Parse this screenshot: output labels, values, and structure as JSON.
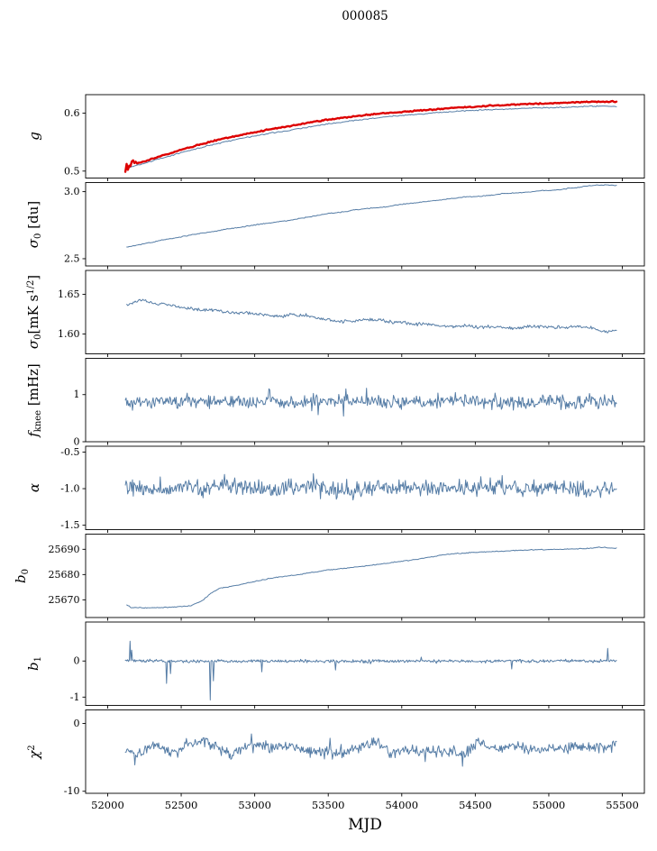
{
  "title": "000085",
  "xlabel": "MJD",
  "colors": {
    "line_blue": "#567da6",
    "line_red": "#dd0000",
    "axis": "#000000"
  },
  "chart_data": {
    "type": "line",
    "layout": "stacked-panels-shared-x",
    "grid": false,
    "legend": "none",
    "x_axis": {
      "label": "MJD",
      "xlim": [
        51850,
        55650
      ],
      "ticks": [
        {
          "v": 52000,
          "label": "52000"
        },
        {
          "v": 52500,
          "label": "52500"
        },
        {
          "v": 53000,
          "label": "53000"
        },
        {
          "v": 53500,
          "label": "53500"
        },
        {
          "v": 54000,
          "label": "54000"
        },
        {
          "v": 54500,
          "label": "54500"
        },
        {
          "v": 55000,
          "label": "55000"
        },
        {
          "v": 55500,
          "label": "55500"
        }
      ]
    },
    "panels": [
      {
        "name": "g",
        "ylabel": [
          {
            "t": "g",
            "italic": true
          }
        ],
        "ylim": [
          0.488,
          0.632
        ],
        "yticks": [
          {
            "v": 0.5,
            "label": "0.5"
          },
          {
            "v": 0.6,
            "label": "0.6"
          }
        ],
        "series": [
          {
            "name": "gain-lower",
            "color": "#567da6",
            "width": 1.0,
            "seed": 3,
            "n": 380,
            "x_range": [
              52120,
              55460
            ],
            "noise": 0.0012,
            "trend": {
              "x": [
                52120,
                52300,
                52500,
                52700,
                52900,
                53100,
                53300,
                53500,
                53700,
                53900,
                54100,
                54300,
                54500,
                54700,
                54900,
                55100,
                55300,
                55460
              ],
              "y": [
                0.504,
                0.517,
                0.532,
                0.545,
                0.556,
                0.565,
                0.573,
                0.582,
                0.588,
                0.594,
                0.598,
                0.602,
                0.605,
                0.607,
                0.609,
                0.61,
                0.612,
                0.612
              ]
            }
          },
          {
            "name": "gain-upper",
            "color": "#dd0000",
            "width": 2.4,
            "seed": 17,
            "n": 380,
            "x_range": [
              52120,
              55460
            ],
            "noise": 0.0013,
            "burst": {
              "x0": 52120,
              "x1": 52195,
              "amp": 0.009
            },
            "trend": {
              "x": [
                52120,
                52200,
                52300,
                52400,
                52500,
                52600,
                52700,
                52800,
                52900,
                53000,
                53100,
                53200,
                53300,
                53400,
                53500,
                53600,
                53700,
                53800,
                53900,
                54000,
                54100,
                54200,
                54300,
                54400,
                54500,
                54600,
                54700,
                54800,
                54900,
                55000,
                55100,
                55200,
                55300,
                55460
              ],
              "y": [
                0.506,
                0.513,
                0.521,
                0.529,
                0.537,
                0.544,
                0.551,
                0.557,
                0.562,
                0.567,
                0.572,
                0.576,
                0.58,
                0.585,
                0.589,
                0.592,
                0.595,
                0.598,
                0.6,
                0.602,
                0.604,
                0.606,
                0.608,
                0.61,
                0.611,
                0.613,
                0.614,
                0.615,
                0.616,
                0.617,
                0.618,
                0.619,
                0.62,
                0.62
              ]
            }
          }
        ]
      },
      {
        "name": "sigma0-du",
        "ylabel": [
          {
            "t": "σ",
            "italic": true
          },
          {
            "t": "0",
            "sub": true
          },
          {
            "t": " [du]"
          }
        ],
        "ylim": [
          2.446,
          3.068
        ],
        "yticks": [
          {
            "v": 2.5,
            "label": "2.5"
          },
          {
            "v": 3.0,
            "label": "3.0"
          }
        ],
        "series": [
          {
            "name": "sigma0-du",
            "color": "#567da6",
            "width": 1.0,
            "seed": 5,
            "n": 420,
            "x_range": [
              52130,
              55460
            ],
            "noise": 0.004,
            "noise2": 0.003,
            "trend": {
              "x": [
                52130,
                52200,
                52350,
                52500,
                52700,
                52900,
                53100,
                53300,
                53500,
                53700,
                53900,
                54100,
                54300,
                54500,
                54700,
                54900,
                55100,
                55250,
                55350,
                55460
              ],
              "y": [
                2.585,
                2.6,
                2.635,
                2.665,
                2.7,
                2.735,
                2.765,
                2.8,
                2.835,
                2.865,
                2.89,
                2.92,
                2.945,
                2.965,
                2.985,
                3.0,
                3.02,
                3.04,
                3.05,
                3.045
              ]
            }
          }
        ]
      },
      {
        "name": "sigma0-mk",
        "ylabel": [
          {
            "t": "σ",
            "italic": true
          },
          {
            "t": "0",
            "sub": true
          },
          {
            "t": "[mK s"
          },
          {
            "t": "1/2",
            "sup": true
          },
          {
            "t": "]"
          }
        ],
        "ylim": [
          1.575,
          1.68
        ],
        "yticks": [
          {
            "v": 1.6,
            "label": "1.60"
          },
          {
            "v": 1.65,
            "label": "1.65"
          }
        ],
        "series": [
          {
            "name": "sigma0-mk",
            "color": "#567da6",
            "width": 1.0,
            "seed": 9,
            "n": 520,
            "x_range": [
              52130,
              55460
            ],
            "noise": 0.0025,
            "noise2": 0.0015,
            "trend": {
              "x": [
                52130,
                52250,
                52350,
                52450,
                52600,
                52800,
                53000,
                53200,
                53350,
                53450,
                53600,
                53800,
                54000,
                54200,
                54400,
                54600,
                54800,
                55000,
                55200,
                55300,
                55380,
                55460
              ],
              "y": [
                1.637,
                1.642,
                1.638,
                1.634,
                1.631,
                1.628,
                1.625,
                1.622,
                1.624,
                1.618,
                1.616,
                1.617,
                1.614,
                1.612,
                1.61,
                1.609,
                1.608,
                1.609,
                1.61,
                1.608,
                1.602,
                1.605
              ]
            }
          }
        ]
      },
      {
        "name": "fknee",
        "ylabel": [
          {
            "t": "f",
            "italic": true
          },
          {
            "t": "knee",
            "sub": true
          },
          {
            "t": " [mHz]"
          }
        ],
        "ylim": [
          0.0,
          1.77
        ],
        "yticks": [
          {
            "v": 0,
            "label": "0"
          },
          {
            "v": 1,
            "label": "1"
          }
        ],
        "series": [
          {
            "name": "fknee",
            "color": "#567da6",
            "width": 1.0,
            "seed": 21,
            "n": 620,
            "x_range": [
              52120,
              55460
            ],
            "noise": 0.17,
            "noise2": 0.04,
            "spike_prob": 0.07,
            "trend": {
              "x": [
                52120,
                55460
              ],
              "y": [
                0.86,
                0.84
              ]
            }
          }
        ]
      },
      {
        "name": "alpha",
        "ylabel": [
          {
            "t": "α",
            "italic": true
          }
        ],
        "ylim": [
          -1.56,
          -0.42
        ],
        "yticks": [
          {
            "v": -0.5,
            "label": "-0.5"
          },
          {
            "v": -1.0,
            "label": "-1.0"
          },
          {
            "v": -1.5,
            "label": "-1.5"
          }
        ],
        "series": [
          {
            "name": "alpha",
            "color": "#567da6",
            "width": 1.0,
            "seed": 33,
            "n": 620,
            "x_range": [
              52120,
              55460
            ],
            "noise": 0.125,
            "noise2": 0.04,
            "spike_prob": 0.05,
            "trend": {
              "x": [
                52120,
                55460
              ],
              "y": [
                -1.0,
                -1.0
              ]
            }
          }
        ]
      },
      {
        "name": "b0",
        "ylabel": [
          {
            "t": "b",
            "italic": true
          },
          {
            "t": "0",
            "sub": true
          }
        ],
        "ylim": [
          25663,
          25696
        ],
        "yticks": [
          {
            "v": 25670,
            "label": "25670"
          },
          {
            "v": 25680,
            "label": "25680"
          },
          {
            "v": 25690,
            "label": "25690"
          }
        ],
        "series": [
          {
            "name": "b0",
            "color": "#567da6",
            "width": 1.0,
            "seed": 41,
            "n": 420,
            "x_range": [
              52130,
              55460
            ],
            "noise": 0.22,
            "trend": {
              "x": [
                52130,
                52160,
                52250,
                52400,
                52550,
                52600,
                52650,
                52700,
                52760,
                52900,
                53100,
                53300,
                53500,
                53700,
                53900,
                54100,
                54250,
                54300,
                54500,
                54700,
                54900,
                55100,
                55250,
                55350,
                55460
              ],
              "y": [
                25668.0,
                25667.0,
                25666.8,
                25667.0,
                25667.5,
                25668.5,
                25670.0,
                25672.5,
                25674.5,
                25676.0,
                25678.5,
                25680.0,
                25681.8,
                25683.0,
                25684.5,
                25686.0,
                25687.5,
                25688.0,
                25688.8,
                25689.3,
                25689.8,
                25690.0,
                25690.3,
                25690.8,
                25690.5
              ]
            }
          }
        ]
      },
      {
        "name": "b1",
        "ylabel": [
          {
            "t": "b",
            "italic": true
          },
          {
            "t": "1",
            "sub": true
          }
        ],
        "ylim": [
          -1.23,
          1.08
        ],
        "yticks": [
          {
            "v": -1,
            "label": "-1"
          },
          {
            "v": 0,
            "label": "0"
          }
        ],
        "series": [
          {
            "name": "b1",
            "color": "#567da6",
            "width": 1.0,
            "seed": 55,
            "n": 620,
            "x_range": [
              52120,
              55460
            ],
            "noise": 0.05,
            "noise2": 0.012,
            "spike_prob": 0.04,
            "trend": {
              "x": [
                52120,
                55460
              ],
              "y": [
                0.0,
                0.0
              ]
            },
            "spikes": [
              {
                "x": 52150,
                "y": 0.55
              },
              {
                "x": 52165,
                "y": 0.3
              },
              {
                "x": 52400,
                "y": -0.62
              },
              {
                "x": 52425,
                "y": -0.35
              },
              {
                "x": 52700,
                "y": -1.08
              },
              {
                "x": 52720,
                "y": -0.55
              },
              {
                "x": 53050,
                "y": -0.3
              },
              {
                "x": 53550,
                "y": -0.25
              },
              {
                "x": 54750,
                "y": -0.22
              },
              {
                "x": 55400,
                "y": 0.35
              }
            ]
          }
        ]
      },
      {
        "name": "chi2",
        "ylabel": [
          {
            "t": "χ",
            "italic": true
          },
          {
            "t": "2",
            "sup": true
          }
        ],
        "ylim": [
          -10.3,
          2.0
        ],
        "yticks": [
          {
            "v": -10,
            "label": "-10"
          },
          {
            "v": 0,
            "label": "0"
          }
        ],
        "series": [
          {
            "name": "chi2",
            "color": "#567da6",
            "width": 1.0,
            "seed": 77,
            "n": 620,
            "x_range": [
              52120,
              55460
            ],
            "noise": 1.0,
            "noise2": 1.0,
            "spike_prob": 0.05,
            "trend": {
              "x": [
                52120,
                55460
              ],
              "y": [
                -3.6,
                -3.5
              ]
            }
          }
        ]
      }
    ]
  }
}
